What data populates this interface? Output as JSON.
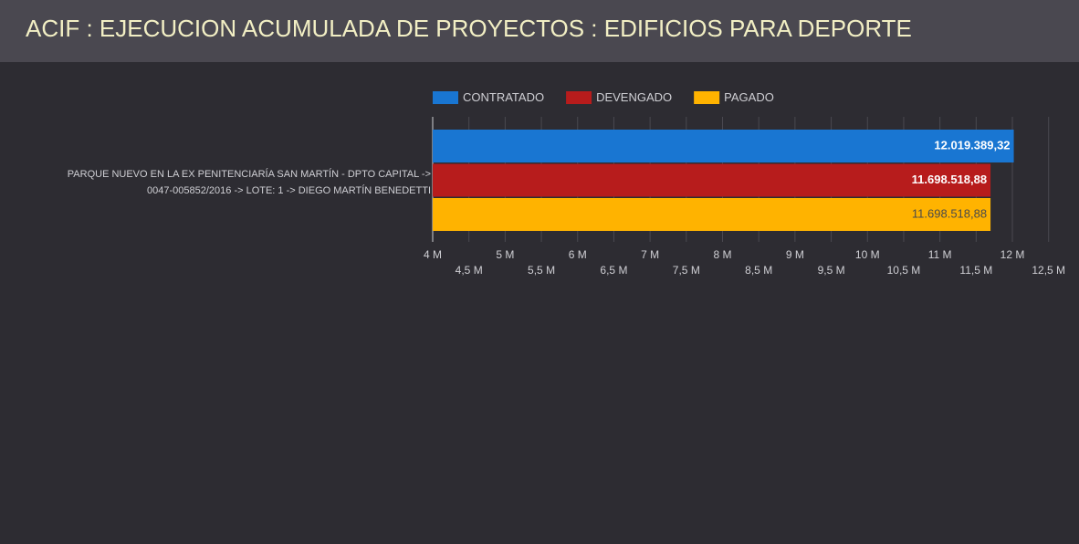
{
  "chart_data": {
    "type": "hbar",
    "title": "ACIF : EJECUCION ACUMULADA DE PROYECTOS : EDIFICIOS PARA DEPORTE",
    "categories": [
      "PARQUE NUEVO EN LA EX PENITENCIARÍA SAN MARTÍN - DPTO CAPITAL ->\n0047-005852/2016 -> LOTE: 1 -> DIEGO MARTÍN BENEDETTI"
    ],
    "series": [
      {
        "name": "CONTRATADO",
        "color": "#1976d2",
        "values": [
          12019389.32
        ],
        "value_labels": [
          "12.019.389,32"
        ]
      },
      {
        "name": "DEVENGADO",
        "color": "#b71c1c",
        "values": [
          11698518.88
        ],
        "value_labels": [
          "11.698.518,88"
        ]
      },
      {
        "name": "PAGADO",
        "color": "#ffb300",
        "values": [
          11698518.88
        ],
        "value_labels": [
          "11.698.518,88"
        ]
      }
    ],
    "xlim": [
      4000000,
      12500000
    ],
    "xticks": [
      {
        "value": 4000000,
        "label": "4 M"
      },
      {
        "value": 4500000,
        "label": "4,5 M"
      },
      {
        "value": 5000000,
        "label": "5 M"
      },
      {
        "value": 5500000,
        "label": "5,5 M"
      },
      {
        "value": 6000000,
        "label": "6 M"
      },
      {
        "value": 6500000,
        "label": "6,5 M"
      },
      {
        "value": 7000000,
        "label": "7 M"
      },
      {
        "value": 7500000,
        "label": "7,5 M"
      },
      {
        "value": 8000000,
        "label": "8 M"
      },
      {
        "value": 8500000,
        "label": "8,5 M"
      },
      {
        "value": 9000000,
        "label": "9 M"
      },
      {
        "value": 9500000,
        "label": "9,5 M"
      },
      {
        "value": 10000000,
        "label": "10 M"
      },
      {
        "value": 10500000,
        "label": "10,5 M"
      },
      {
        "value": 11000000,
        "label": "11 M"
      },
      {
        "value": 11500000,
        "label": "11,5 M"
      },
      {
        "value": 12000000,
        "label": "12 M"
      },
      {
        "value": 12500000,
        "label": "12,5 M"
      }
    ],
    "grid": true,
    "legend": "top"
  }
}
